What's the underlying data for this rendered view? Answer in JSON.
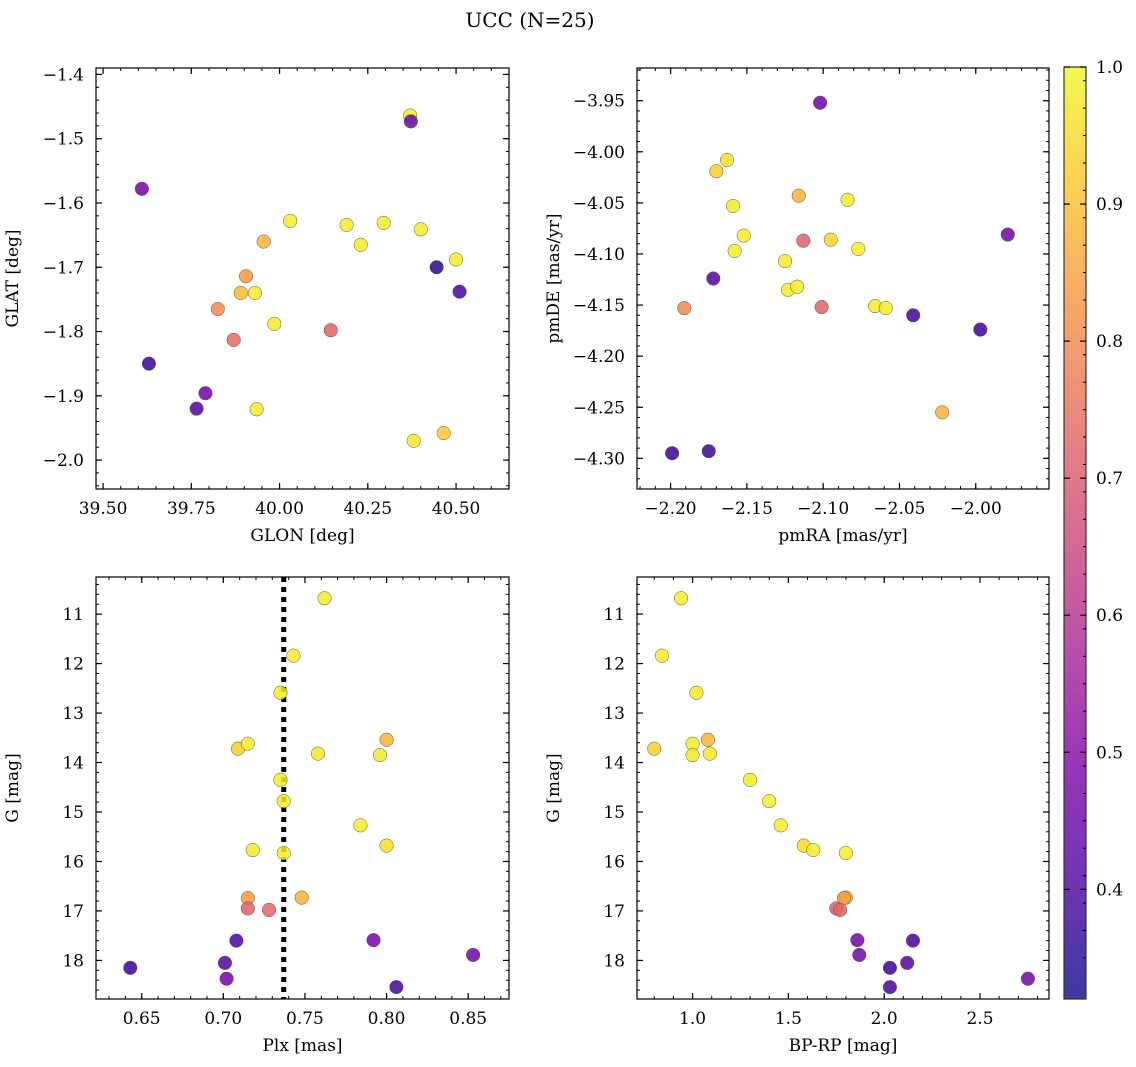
{
  "figure": {
    "title": "UCC (N=25)"
  },
  "colorbar": {
    "ticks": [
      0.4,
      0.5,
      0.6,
      0.7,
      0.8,
      0.9,
      1.0
    ],
    "tick_labels": [
      "0.4",
      "0.5",
      "0.6",
      "0.7",
      "0.8",
      "0.9",
      "1.0"
    ],
    "range": [
      0.32,
      1.0
    ],
    "colormap": "plasma"
  },
  "chart_data": [
    {
      "type": "scatter",
      "xlabel": "GLON [deg]",
      "ylabel": "GLAT [deg]",
      "xlim": [
        39.48,
        40.65
      ],
      "ylim": [
        -2.045,
        -1.39
      ],
      "xticks": [
        39.5,
        39.75,
        40.0,
        40.25,
        40.5
      ],
      "xtick_labels": [
        "39.50",
        "39.75",
        "40.00",
        "40.25",
        "40.50"
      ],
      "yticks": [
        -2.0,
        -1.9,
        -1.8,
        -1.7,
        -1.6,
        -1.5,
        -1.4
      ],
      "ytick_labels": [
        "−2.0",
        "−1.9",
        "−1.8",
        "−1.7",
        "−1.6",
        "−1.5",
        "−1.4"
      ],
      "points": [
        {
          "x": 40.37,
          "y": -1.464,
          "c": 0.98
        },
        {
          "x": 40.372,
          "y": -1.473,
          "c": 0.45
        },
        {
          "x": 39.61,
          "y": -1.578,
          "c": 0.47
        },
        {
          "x": 40.03,
          "y": -1.628,
          "c": 0.98
        },
        {
          "x": 40.19,
          "y": -1.634,
          "c": 0.98
        },
        {
          "x": 40.295,
          "y": -1.631,
          "c": 0.98
        },
        {
          "x": 40.4,
          "y": -1.641,
          "c": 0.98
        },
        {
          "x": 39.955,
          "y": -1.66,
          "c": 0.88
        },
        {
          "x": 40.23,
          "y": -1.665,
          "c": 0.98
        },
        {
          "x": 40.5,
          "y": -1.688,
          "c": 0.98
        },
        {
          "x": 40.445,
          "y": -1.7,
          "c": 0.36
        },
        {
          "x": 39.905,
          "y": -1.714,
          "c": 0.83
        },
        {
          "x": 40.51,
          "y": -1.738,
          "c": 0.4
        },
        {
          "x": 39.89,
          "y": -1.74,
          "c": 0.9
        },
        {
          "x": 39.93,
          "y": -1.74,
          "c": 0.98
        },
        {
          "x": 39.825,
          "y": -1.765,
          "c": 0.8
        },
        {
          "x": 39.985,
          "y": -1.788,
          "c": 0.98
        },
        {
          "x": 40.145,
          "y": -1.798,
          "c": 0.72
        },
        {
          "x": 39.87,
          "y": -1.813,
          "c": 0.74
        },
        {
          "x": 39.63,
          "y": -1.85,
          "c": 0.38
        },
        {
          "x": 39.79,
          "y": -1.896,
          "c": 0.47
        },
        {
          "x": 39.765,
          "y": -1.92,
          "c": 0.42
        },
        {
          "x": 39.935,
          "y": -1.921,
          "c": 0.98
        },
        {
          "x": 40.38,
          "y": -1.97,
          "c": 0.97
        },
        {
          "x": 40.465,
          "y": -1.958,
          "c": 0.92
        }
      ]
    },
    {
      "type": "scatter",
      "xlabel": "pmRA [mas/yr]",
      "ylabel": "pmDE [mas/yr]",
      "xlim": [
        -2.222,
        -1.952
      ],
      "ylim": [
        -4.33,
        -3.918
      ],
      "xticks": [
        -2.2,
        -2.15,
        -2.1,
        -2.05,
        -2.0
      ],
      "xtick_labels": [
        "−2.20",
        "−2.15",
        "−2.10",
        "−2.05",
        "−2.00"
      ],
      "yticks": [
        -4.3,
        -4.25,
        -4.2,
        -4.15,
        -4.1,
        -4.05,
        -4.0,
        -3.95
      ],
      "ytick_labels": [
        "−4.30",
        "−4.25",
        "−4.20",
        "−4.15",
        "−4.10",
        "−4.05",
        "−4.00",
        "−3.95"
      ],
      "points": [
        {
          "x": -2.102,
          "y": -3.952,
          "c": 0.47
        },
        {
          "x": -2.163,
          "y": -4.008,
          "c": 0.96
        },
        {
          "x": -2.17,
          "y": -4.019,
          "c": 0.93
        },
        {
          "x": -2.116,
          "y": -4.043,
          "c": 0.88
        },
        {
          "x": -2.084,
          "y": -4.047,
          "c": 0.98
        },
        {
          "x": -2.159,
          "y": -4.053,
          "c": 0.98
        },
        {
          "x": -2.152,
          "y": -4.082,
          "c": 0.98
        },
        {
          "x": -1.979,
          "y": -4.081,
          "c": 0.47
        },
        {
          "x": -2.113,
          "y": -4.087,
          "c": 0.72
        },
        {
          "x": -2.095,
          "y": -4.086,
          "c": 0.94
        },
        {
          "x": -2.077,
          "y": -4.095,
          "c": 0.98
        },
        {
          "x": -2.158,
          "y": -4.097,
          "c": 0.98
        },
        {
          "x": -2.125,
          "y": -4.107,
          "c": 0.98
        },
        {
          "x": -2.172,
          "y": -4.124,
          "c": 0.42
        },
        {
          "x": -2.123,
          "y": -4.135,
          "c": 0.98
        },
        {
          "x": -2.117,
          "y": -4.132,
          "c": 0.98
        },
        {
          "x": -2.191,
          "y": -4.153,
          "c": 0.8
        },
        {
          "x": -2.101,
          "y": -4.152,
          "c": 0.72
        },
        {
          "x": -2.066,
          "y": -4.151,
          "c": 0.98
        },
        {
          "x": -2.059,
          "y": -4.153,
          "c": 0.98
        },
        {
          "x": -2.041,
          "y": -4.16,
          "c": 0.4
        },
        {
          "x": -1.997,
          "y": -4.174,
          "c": 0.38
        },
        {
          "x": -2.022,
          "y": -4.255,
          "c": 0.88
        },
        {
          "x": -2.199,
          "y": -4.295,
          "c": 0.38
        },
        {
          "x": -2.175,
          "y": -4.293,
          "c": 0.38
        }
      ]
    },
    {
      "type": "scatter",
      "xlabel": "Plx [mas]",
      "ylabel": "G [mag]",
      "xlim": [
        0.622,
        0.875
      ],
      "ylim": [
        18.78,
        10.25
      ],
      "yinverted": true,
      "vline": 0.737,
      "xticks": [
        0.65,
        0.7,
        0.75,
        0.8,
        0.85
      ],
      "xtick_labels": [
        "0.65",
        "0.70",
        "0.75",
        "0.80",
        "0.85"
      ],
      "yticks": [
        11,
        12,
        13,
        14,
        15,
        16,
        17,
        18
      ],
      "ytick_labels": [
        "11",
        "12",
        "13",
        "14",
        "15",
        "16",
        "17",
        "18"
      ],
      "points": [
        {
          "x": 0.762,
          "y": 10.68,
          "c": 0.98
        },
        {
          "x": 0.743,
          "y": 11.84,
          "c": 0.98
        },
        {
          "x": 0.735,
          "y": 12.59,
          "c": 0.98
        },
        {
          "x": 0.8,
          "y": 13.54,
          "c": 0.88
        },
        {
          "x": 0.709,
          "y": 13.72,
          "c": 0.93
        },
        {
          "x": 0.715,
          "y": 13.62,
          "c": 0.98
        },
        {
          "x": 0.758,
          "y": 13.82,
          "c": 0.97
        },
        {
          "x": 0.796,
          "y": 13.85,
          "c": 0.97
        },
        {
          "x": 0.735,
          "y": 14.35,
          "c": 0.98
        },
        {
          "x": 0.737,
          "y": 14.78,
          "c": 0.98
        },
        {
          "x": 0.784,
          "y": 15.27,
          "c": 0.98
        },
        {
          "x": 0.8,
          "y": 15.68,
          "c": 0.95
        },
        {
          "x": 0.718,
          "y": 15.77,
          "c": 0.98
        },
        {
          "x": 0.737,
          "y": 15.83,
          "c": 0.98
        },
        {
          "x": 0.715,
          "y": 16.74,
          "c": 0.84
        },
        {
          "x": 0.748,
          "y": 16.73,
          "c": 0.88
        },
        {
          "x": 0.715,
          "y": 16.95,
          "c": 0.72
        },
        {
          "x": 0.728,
          "y": 16.98,
          "c": 0.73
        },
        {
          "x": 0.708,
          "y": 17.6,
          "c": 0.4
        },
        {
          "x": 0.792,
          "y": 17.59,
          "c": 0.47
        },
        {
          "x": 0.853,
          "y": 17.89,
          "c": 0.47
        },
        {
          "x": 0.643,
          "y": 18.15,
          "c": 0.38
        },
        {
          "x": 0.701,
          "y": 18.05,
          "c": 0.42
        },
        {
          "x": 0.702,
          "y": 18.37,
          "c": 0.47
        },
        {
          "x": 0.806,
          "y": 18.54,
          "c": 0.4
        }
      ]
    },
    {
      "type": "scatter",
      "xlabel": "BP-RP [mag]",
      "ylabel": "G [mag]",
      "xlim": [
        0.71,
        2.86
      ],
      "ylim": [
        18.78,
        10.25
      ],
      "yinverted": true,
      "xticks": [
        1.0,
        1.5,
        2.0,
        2.5
      ],
      "xtick_labels": [
        "1.0",
        "1.5",
        "2.0",
        "2.5"
      ],
      "yticks": [
        11,
        12,
        13,
        14,
        15,
        16,
        17,
        18
      ],
      "ytick_labels": [
        "11",
        "12",
        "13",
        "14",
        "15",
        "16",
        "17",
        "18"
      ],
      "points": [
        {
          "x": 0.94,
          "y": 10.68,
          "c": 0.98
        },
        {
          "x": 0.84,
          "y": 11.84,
          "c": 0.98
        },
        {
          "x": 1.02,
          "y": 12.59,
          "c": 0.98
        },
        {
          "x": 0.8,
          "y": 13.72,
          "c": 0.93
        },
        {
          "x": 1.0,
          "y": 13.62,
          "c": 0.98
        },
        {
          "x": 1.08,
          "y": 13.54,
          "c": 0.88
        },
        {
          "x": 1.0,
          "y": 13.85,
          "c": 0.97
        },
        {
          "x": 1.09,
          "y": 13.82,
          "c": 0.97
        },
        {
          "x": 1.3,
          "y": 14.35,
          "c": 0.98
        },
        {
          "x": 1.4,
          "y": 14.78,
          "c": 0.98
        },
        {
          "x": 1.46,
          "y": 15.27,
          "c": 0.98
        },
        {
          "x": 1.58,
          "y": 15.68,
          "c": 0.95
        },
        {
          "x": 1.63,
          "y": 15.77,
          "c": 0.98
        },
        {
          "x": 1.8,
          "y": 15.83,
          "c": 0.98
        },
        {
          "x": 1.8,
          "y": 16.73,
          "c": 0.88
        },
        {
          "x": 1.79,
          "y": 16.74,
          "c": 0.84
        },
        {
          "x": 1.75,
          "y": 16.95,
          "c": 0.72
        },
        {
          "x": 1.77,
          "y": 16.98,
          "c": 0.73
        },
        {
          "x": 1.86,
          "y": 17.59,
          "c": 0.47
        },
        {
          "x": 2.15,
          "y": 17.6,
          "c": 0.4
        },
        {
          "x": 1.87,
          "y": 17.89,
          "c": 0.47
        },
        {
          "x": 2.12,
          "y": 18.05,
          "c": 0.42
        },
        {
          "x": 2.03,
          "y": 18.15,
          "c": 0.38
        },
        {
          "x": 2.03,
          "y": 18.54,
          "c": 0.4
        },
        {
          "x": 2.75,
          "y": 18.37,
          "c": 0.47
        }
      ]
    }
  ]
}
